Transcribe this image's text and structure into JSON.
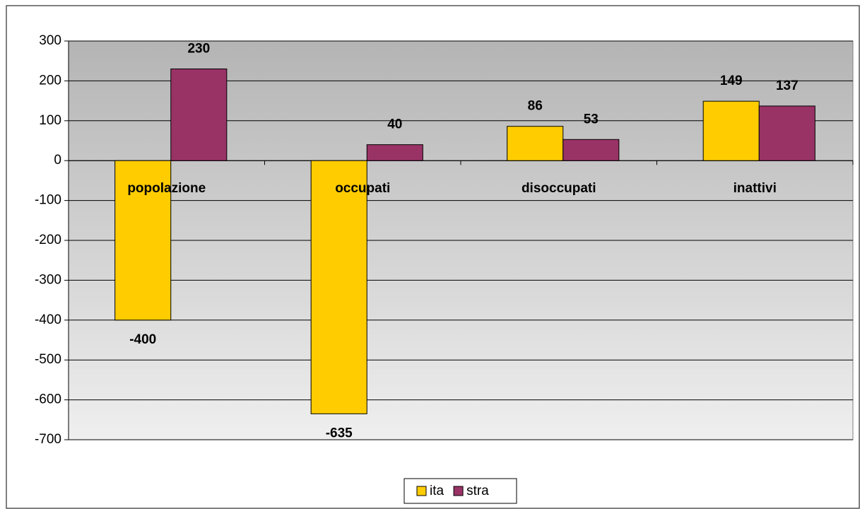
{
  "chart_data": {
    "type": "bar",
    "categories": [
      "popolazione",
      "occupati",
      "disoccupati",
      "inattivi"
    ],
    "series": [
      {
        "name": "ita",
        "color": "#ffcc00",
        "values": [
          -400,
          -635,
          86,
          149
        ]
      },
      {
        "name": "stra",
        "color": "#993366",
        "values": [
          230,
          40,
          53,
          137
        ]
      }
    ],
    "ylim": [
      -700,
      300
    ],
    "yticks": [
      -700,
      -600,
      -500,
      -400,
      -300,
      -200,
      -100,
      0,
      100,
      200,
      300
    ],
    "grid": true,
    "legend": "bottom"
  }
}
